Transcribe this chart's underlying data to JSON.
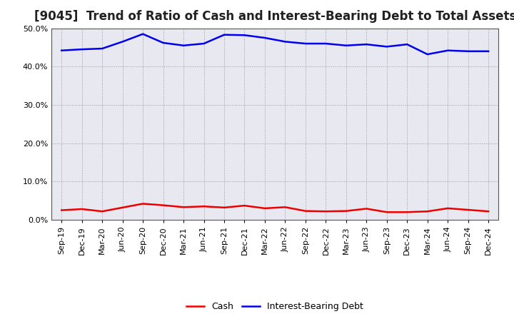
{
  "title": "[9045]  Trend of Ratio of Cash and Interest-Bearing Debt to Total Assets",
  "labels": [
    "Sep-19",
    "Dec-19",
    "Mar-20",
    "Jun-20",
    "Sep-20",
    "Dec-20",
    "Mar-21",
    "Jun-21",
    "Sep-21",
    "Dec-21",
    "Mar-22",
    "Jun-22",
    "Sep-22",
    "Dec-22",
    "Mar-23",
    "Jun-23",
    "Sep-23",
    "Dec-23",
    "Mar-24",
    "Jun-24",
    "Sep-24",
    "Dec-24"
  ],
  "cash": [
    2.5,
    2.8,
    2.2,
    3.2,
    4.2,
    3.8,
    3.3,
    3.5,
    3.2,
    3.7,
    3.0,
    3.3,
    2.3,
    2.2,
    2.3,
    2.9,
    2.0,
    2.0,
    2.2,
    3.0,
    2.6,
    2.2
  ],
  "interest_bearing_debt": [
    44.2,
    44.5,
    44.7,
    46.5,
    48.5,
    46.2,
    45.5,
    46.0,
    48.3,
    48.2,
    47.5,
    46.5,
    46.0,
    46.0,
    45.5,
    45.8,
    45.2,
    45.8,
    43.2,
    44.2,
    44.0,
    44.0
  ],
  "cash_color": "#ee0000",
  "debt_color": "#0000ee",
  "ylim": [
    0.0,
    50.0
  ],
  "yticks": [
    0.0,
    10.0,
    20.0,
    30.0,
    40.0,
    50.0
  ],
  "background_color": "#ffffff",
  "plot_bg_color": "#e8e8f0",
  "grid_color": "#999999",
  "title_fontsize": 12,
  "tick_fontsize": 8,
  "legend_cash": "Cash",
  "legend_debt": "Interest-Bearing Debt"
}
